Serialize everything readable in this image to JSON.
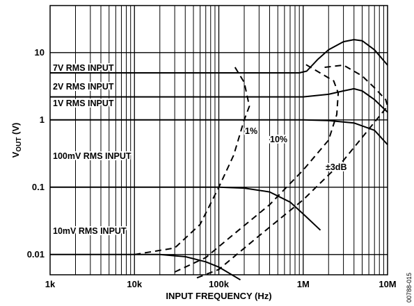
{
  "figure_code": "00788-015",
  "chart_data": {
    "type": "line",
    "xlabel": "INPUT FREQUENCY (Hz)",
    "ylabel_main": "V",
    "ylabel_sub": "OUT",
    "ylabel_unit": " (V)",
    "x_scale": "log",
    "y_scale": "log",
    "xlim": [
      1000,
      10000000
    ],
    "ylim": [
      0.005,
      50
    ],
    "grid": true,
    "x_ticks": [
      {
        "value": 1000,
        "label": "1k"
      },
      {
        "value": 10000,
        "label": "10k"
      },
      {
        "value": 100000,
        "label": "100k"
      },
      {
        "value": 1000000,
        "label": "1M"
      },
      {
        "value": 10000000,
        "label": "10M"
      }
    ],
    "y_ticks": [
      {
        "value": 0.01,
        "label": "0.01"
      },
      {
        "value": 0.1,
        "label": "0.1"
      },
      {
        "value": 1,
        "label": "1"
      },
      {
        "value": 10,
        "label": "10"
      }
    ],
    "series": [
      {
        "name": "7V RMS INPUT",
        "style": "solid",
        "points": [
          [
            1000,
            5
          ],
          [
            900000,
            5
          ],
          [
            1100000,
            5.3
          ],
          [
            1500000,
            8
          ],
          [
            2000000,
            11
          ],
          [
            3000000,
            14.5
          ],
          [
            4000000,
            15.6
          ],
          [
            5000000,
            15
          ],
          [
            7000000,
            11
          ],
          [
            10000000,
            6.5
          ]
        ]
      },
      {
        "name": "2V RMS INPUT",
        "style": "solid",
        "points": [
          [
            1000,
            2.2
          ],
          [
            1000000,
            2.2
          ],
          [
            2000000,
            2.4
          ],
          [
            3000000,
            2.7
          ],
          [
            4000000,
            2.9
          ],
          [
            5000000,
            2.7
          ],
          [
            7000000,
            2
          ],
          [
            10000000,
            1.3
          ]
        ]
      },
      {
        "name": "1V RMS INPUT",
        "style": "solid",
        "points": [
          [
            1000,
            1
          ],
          [
            1000000,
            1
          ],
          [
            2000000,
            0.98
          ],
          [
            4000000,
            0.9
          ],
          [
            7000000,
            0.7
          ],
          [
            10000000,
            0.43
          ]
        ]
      },
      {
        "name": "100mV RMS INPUT",
        "style": "solid",
        "points": [
          [
            1000,
            0.1
          ],
          [
            100000,
            0.1
          ],
          [
            200000,
            0.097
          ],
          [
            400000,
            0.085
          ],
          [
            700000,
            0.06
          ],
          [
            1000000,
            0.04
          ],
          [
            1600000,
            0.023
          ]
        ]
      },
      {
        "name": "10mV RMS INPUT",
        "style": "solid",
        "points": [
          [
            1000,
            0.01
          ],
          [
            20000,
            0.01
          ],
          [
            40000,
            0.0093
          ],
          [
            70000,
            0.0078
          ],
          [
            100000,
            0.0065
          ],
          [
            180000,
            0.0042
          ]
        ]
      },
      {
        "name": "1%",
        "style": "dashed",
        "points": [
          [
            10000,
            0.01
          ],
          [
            30000,
            0.0125
          ],
          [
            60000,
            0.028
          ],
          [
            100000,
            0.1
          ],
          [
            150000,
            0.3
          ],
          [
            200000,
            1
          ],
          [
            230000,
            1.6
          ],
          [
            200000,
            3.6
          ],
          [
            150000,
            6.5
          ]
        ]
      },
      {
        "name": "10%",
        "style": "dashed",
        "points": [
          [
            30000,
            0.0055
          ],
          [
            70000,
            0.009
          ],
          [
            150000,
            0.02
          ],
          [
            400000,
            0.055
          ],
          [
            1000000,
            0.18
          ],
          [
            2000000,
            0.5
          ],
          [
            2500000,
            1.2
          ],
          [
            2600000,
            2.5
          ],
          [
            2300000,
            3.8
          ],
          [
            1000000,
            7
          ]
        ]
      },
      {
        "name": "±3dB",
        "style": "dashed",
        "points": [
          [
            55000,
            0.0045
          ],
          [
            100000,
            0.006
          ],
          [
            300000,
            0.019
          ],
          [
            1000000,
            0.065
          ],
          [
            3000000,
            0.25
          ],
          [
            10000000,
            1.6
          ],
          [
            9500000,
            2
          ],
          [
            7000000,
            3
          ],
          [
            5000000,
            4.5
          ],
          [
            3000000,
            6.5
          ],
          [
            1700000,
            6
          ]
        ]
      }
    ],
    "annotations": [
      {
        "text": "7V RMS INPUT",
        "series": "7V RMS INPUT"
      },
      {
        "text": "2V RMS INPUT",
        "series": "2V RMS INPUT"
      },
      {
        "text": "1V RMS INPUT",
        "series": "1V RMS INPUT"
      },
      {
        "text": "100mV RMS INPUT",
        "series": "100mV RMS INPUT"
      },
      {
        "text": "10mV RMS INPUT",
        "series": "10mV RMS INPUT"
      },
      {
        "text": "1%",
        "series": "1%"
      },
      {
        "text": "10%",
        "series": "10%"
      },
      {
        "text": "±3dB",
        "series": "±3dB"
      }
    ]
  }
}
